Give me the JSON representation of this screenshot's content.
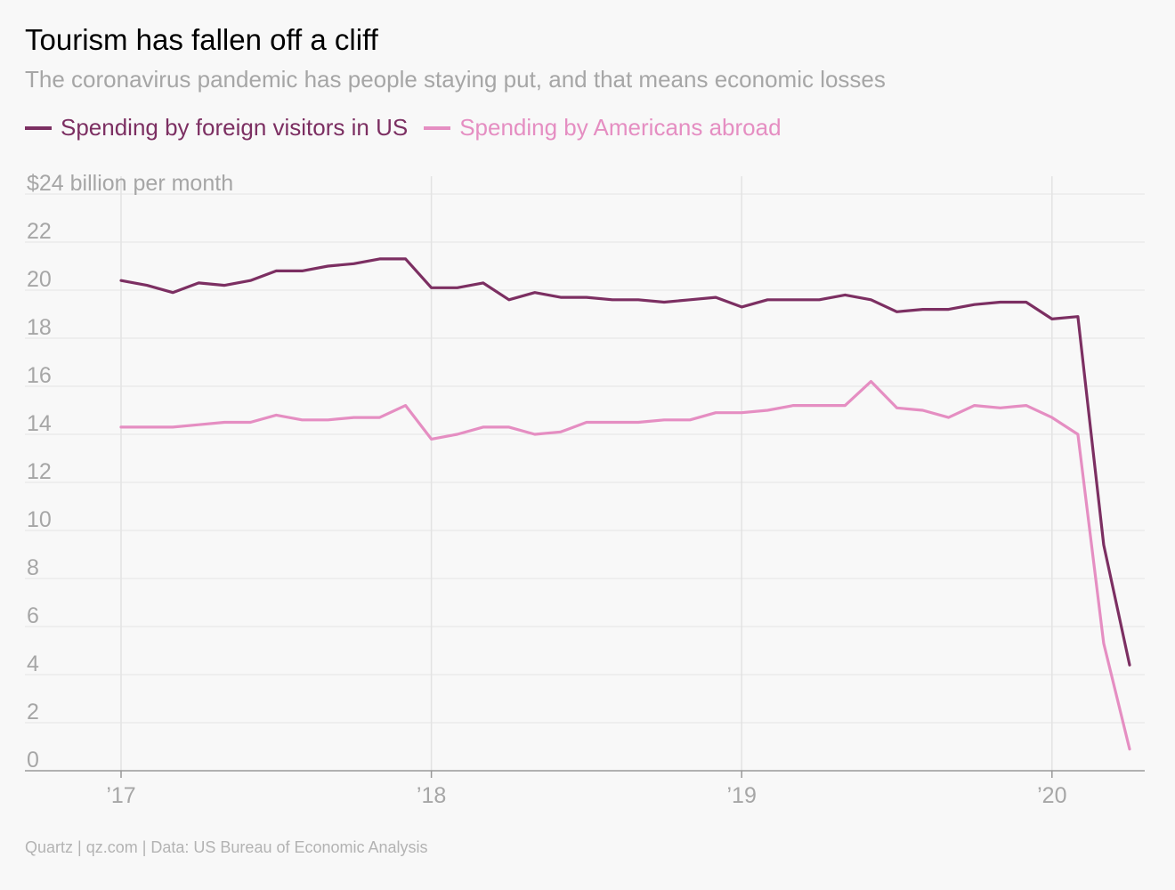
{
  "title": "Tourism has fallen off a cliff",
  "subtitle": "The coronavirus pandemic has people staying put, and that means economic losses",
  "footer": "Quartz | qz.com | Data: US Bureau of Economic Analysis",
  "colors": {
    "series_1": "#7c2f62",
    "series_2": "#e58ec2",
    "grid": "#e3e3e3",
    "axis": "#999999",
    "tick_text": "#a6a6a6",
    "background": "#f8f8f8"
  },
  "chart_data": {
    "type": "line",
    "ylabel": "$24 billion per month",
    "xlabel": "",
    "ylim": [
      0,
      24
    ],
    "xlim": [
      -0.5,
      39.5
    ],
    "y_ticks": [
      0,
      2,
      4,
      6,
      8,
      10,
      12,
      14,
      16,
      18,
      20,
      22,
      24
    ],
    "y_tick_labels": [
      "0",
      "2",
      "4",
      "6",
      "8",
      "10",
      "12",
      "14",
      "16",
      "18",
      "20",
      "22",
      "$24 billion per month"
    ],
    "x_ticks": [
      0,
      12,
      24,
      36
    ],
    "x_tick_labels": [
      "’17",
      "’18",
      "’19",
      "’20"
    ],
    "grid": true,
    "legend_position": "top-left",
    "series": [
      {
        "name": "Spending by foreign visitors in US",
        "values": [
          20.4,
          20.2,
          19.9,
          20.3,
          20.2,
          20.4,
          20.8,
          20.8,
          21.0,
          21.1,
          21.3,
          21.3,
          20.1,
          20.1,
          20.3,
          19.6,
          19.9,
          19.7,
          19.7,
          19.6,
          19.6,
          19.5,
          19.6,
          19.7,
          19.3,
          19.6,
          19.6,
          19.6,
          19.8,
          19.6,
          19.1,
          19.2,
          19.2,
          19.4,
          19.5,
          19.5,
          18.8,
          18.9,
          9.4,
          4.4
        ]
      },
      {
        "name": "Spending by Americans abroad",
        "values": [
          14.3,
          14.3,
          14.3,
          14.4,
          14.5,
          14.5,
          14.8,
          14.6,
          14.6,
          14.7,
          14.7,
          15.2,
          13.8,
          14.0,
          14.3,
          14.3,
          14.0,
          14.1,
          14.5,
          14.5,
          14.5,
          14.6,
          14.6,
          14.9,
          14.9,
          15.0,
          15.2,
          15.2,
          15.2,
          16.2,
          15.1,
          15.0,
          14.7,
          15.2,
          15.1,
          15.2,
          14.7,
          14.0,
          5.3,
          0.9
        ]
      }
    ]
  }
}
